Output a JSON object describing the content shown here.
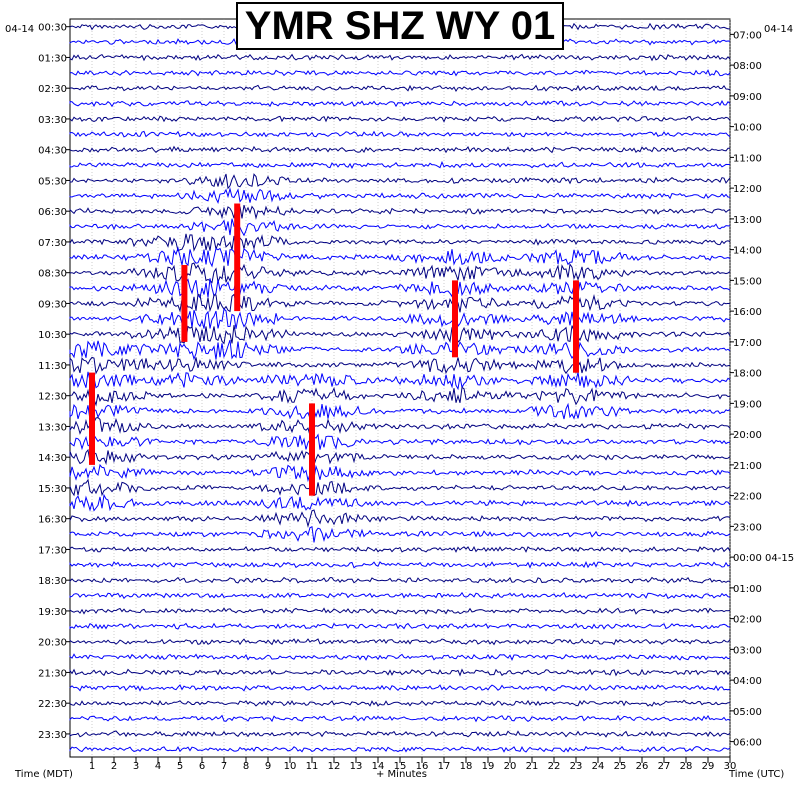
{
  "chart_data": {
    "type": "seismogram",
    "title": "YMR SHZ WY 01",
    "left_date": "04-14",
    "right_date": "04-14",
    "left_axis_title": "Time (MDT)",
    "right_axis_title": "Time (UTC)",
    "x_axis_title": "+ Minutes",
    "x_ticks": [
      1,
      2,
      3,
      4,
      5,
      6,
      7,
      8,
      9,
      10,
      11,
      12,
      13,
      14,
      15,
      16,
      17,
      18,
      19,
      20,
      21,
      22,
      23,
      24,
      25,
      26,
      27,
      28,
      29,
      30
    ],
    "xlim": [
      0,
      30
    ],
    "left_labels": [
      "00:30",
      "01:30",
      "02:30",
      "03:30",
      "04:30",
      "05:30",
      "06:30",
      "07:30",
      "08:30",
      "09:30",
      "10:30",
      "11:30",
      "12:30",
      "13:30",
      "14:30",
      "15:30",
      "16:30",
      "17:30",
      "18:30",
      "19:30",
      "20:30",
      "21:30",
      "22:30",
      "23:30"
    ],
    "right_labels": [
      "07:00",
      "08:00",
      "09:00",
      "10:00",
      "11:00",
      "12:00",
      "13:00",
      "14:00",
      "15:00",
      "16:00",
      "17:00",
      "18:00",
      "19:00",
      "20:00",
      "21:00",
      "22:00",
      "23:00",
      "00:00 04-15",
      "01:00",
      "02:00",
      "03:00",
      "04:00",
      "05:00",
      "06:00"
    ],
    "traces_per_hour": 2,
    "trace_colors": [
      "#000080",
      "#0000ff"
    ],
    "clip_color": "#ff0000",
    "clipped_events": [
      {
        "start_hour": 11.5,
        "end_hour": 14.5,
        "minute": 1
      },
      {
        "start_hour": 6,
        "end_hour": 9.5,
        "minute": 7.6
      },
      {
        "start_hour": 8,
        "end_hour": 10.5,
        "minute": 5.2
      },
      {
        "start_hour": 12.5,
        "end_hour": 15.5,
        "minute": 11
      },
      {
        "start_hour": 8.5,
        "end_hour": 11,
        "minute": 17.5
      },
      {
        "start_hour": 8.5,
        "end_hour": 11.5,
        "minute": 23
      }
    ]
  }
}
